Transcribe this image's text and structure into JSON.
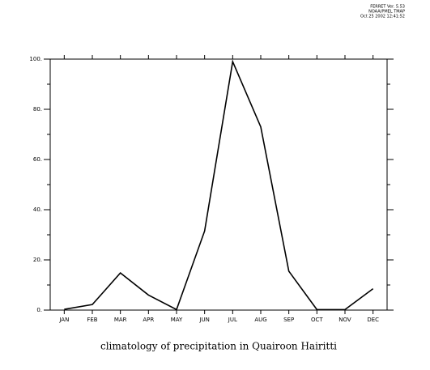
{
  "header": [
    "FERRET Ver. 5.53",
    "NOAA/PMEL TMAP",
    "Oct 25 2002 12:41:52"
  ],
  "chart_data": {
    "type": "line",
    "title": "climatology of precipitation in Quairoon Hairitti",
    "categories": [
      "JAN",
      "FEB",
      "MAR",
      "APR",
      "MAY",
      "JUN",
      "JUL",
      "AUG",
      "SEP",
      "OCT",
      "NOV",
      "DEC"
    ],
    "series": [
      {
        "color": "#000000",
        "values": [
          0.3,
          2.2,
          14.8,
          6,
          0.2,
          31.5,
          99,
          73,
          15.5,
          0.2,
          0.2,
          8.5
        ]
      }
    ],
    "ylim": [
      0,
      100
    ],
    "yticks": [
      {
        "value": 0,
        "label": "0."
      },
      {
        "value": 20,
        "label": "20."
      },
      {
        "value": 40,
        "label": "40."
      },
      {
        "value": 60,
        "label": "60."
      },
      {
        "value": 80,
        "label": "80."
      },
      {
        "value": 100,
        "label": "100."
      }
    ],
    "yminorticks": [
      10,
      30,
      50,
      70,
      90
    ]
  }
}
